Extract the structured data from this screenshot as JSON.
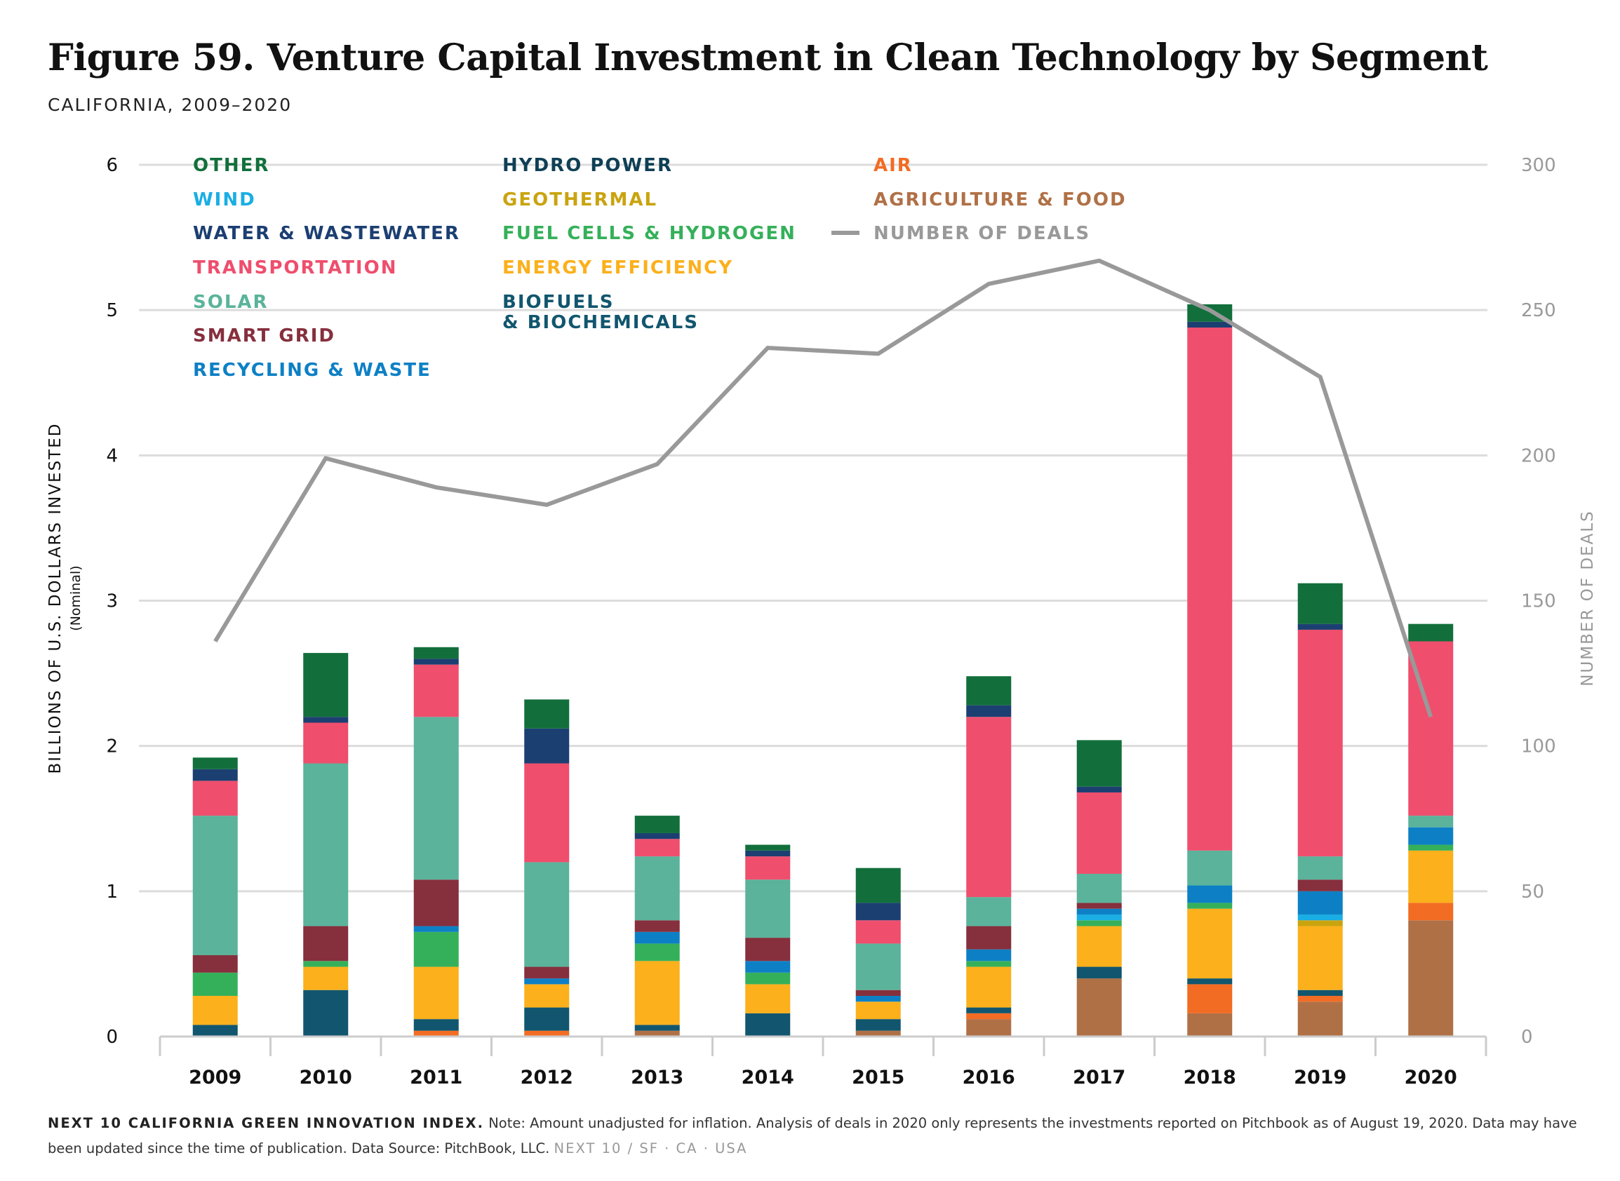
{
  "title": "Figure 59. Venture Capital Investment in Clean Technology by Segment",
  "subtitle": "CALIFORNIA, 2009–2020",
  "footnote": {
    "source_label": "NEXT 10 CALIFORNIA GREEN INNOVATION INDEX.",
    "note": "Note: Amount unadjusted for inflation. Analysis of deals in 2020 only represents the investments reported on Pitchbook as of August 19, 2020. Data may have been updated since the time of publication. Data Source: PitchBook, LLC.",
    "brand": "NEXT 10 / SF · CA · USA"
  },
  "chart_data": {
    "type": "bar",
    "stacked": true,
    "categories": [
      "2009",
      "2010",
      "2011",
      "2012",
      "2013",
      "2014",
      "2015",
      "2016",
      "2017",
      "2018",
      "2019",
      "2020"
    ],
    "ylabel": "BILLIONS OF U.S. DOLLARS INVESTED",
    "ylabel_sub": "(Nominal)",
    "y2label": "NUMBER OF DEALS",
    "ylim": [
      0,
      6
    ],
    "y2lim": [
      0,
      300
    ],
    "yticks": [
      "0",
      "1",
      "2",
      "3",
      "4",
      "5",
      "6"
    ],
    "y2ticks": [
      "0",
      "50",
      "100",
      "150",
      "200",
      "250",
      "300"
    ],
    "grid": true,
    "legend_position": "top-left",
    "series": [
      {
        "name": "AGRICULTURE & FOOD",
        "color": "#b07046",
        "values": [
          0,
          0,
          0,
          0,
          0.04,
          0,
          0.04,
          0.12,
          0.4,
          0.16,
          0.24,
          0.8
        ]
      },
      {
        "name": "AIR",
        "color": "#f26c23",
        "values": [
          0,
          0,
          0.04,
          0.04,
          0,
          0,
          0,
          0.04,
          0,
          0.2,
          0.04,
          0.12
        ]
      },
      {
        "name": "BIOFUELS & BIOCHEMICALS",
        "color": "#11566e",
        "values": [
          0.08,
          0.32,
          0.08,
          0.16,
          0.04,
          0.16,
          0.08,
          0.04,
          0.08,
          0.04,
          0.04,
          0
        ]
      },
      {
        "name": "ENERGY EFFICIENCY",
        "color": "#fbb01c",
        "values": [
          0.2,
          0.16,
          0.36,
          0.16,
          0.44,
          0.2,
          0.12,
          0.28,
          0.28,
          0.48,
          0.44,
          0.36
        ]
      },
      {
        "name": "GEOTHERMAL",
        "color": "#c9a40f",
        "values": [
          0,
          0,
          0,
          0,
          0,
          0,
          0,
          0,
          0,
          0,
          0.04,
          0
        ]
      },
      {
        "name": "FUEL CELLS & HYDROGEN",
        "color": "#35b05a",
        "values": [
          0.16,
          0.04,
          0.24,
          0,
          0.12,
          0.08,
          0,
          0.04,
          0.04,
          0.04,
          0,
          0.04
        ]
      },
      {
        "name": "WIND",
        "color": "#1aaee4",
        "values": [
          0,
          0,
          0,
          0,
          0,
          0,
          0,
          0,
          0.04,
          0,
          0.04,
          0
        ]
      },
      {
        "name": "RECYCLING & WASTE",
        "color": "#0d80c5",
        "values": [
          0,
          0,
          0.04,
          0.04,
          0.08,
          0.08,
          0.04,
          0.08,
          0.04,
          0.12,
          0.16,
          0.12
        ]
      },
      {
        "name": "SMART GRID",
        "color": "#862f3d",
        "values": [
          0.12,
          0.24,
          0.32,
          0.08,
          0.08,
          0.16,
          0.04,
          0.16,
          0.04,
          0,
          0.08,
          0
        ]
      },
      {
        "name": "SOLAR",
        "color": "#5ab39a",
        "values": [
          0.96,
          1.12,
          1.12,
          0.72,
          0.44,
          0.4,
          0.32,
          0.2,
          0.2,
          0.24,
          0.16,
          0.08
        ]
      },
      {
        "name": "TRANSPORTATION",
        "color": "#ef4e6d",
        "values": [
          0.24,
          0.28,
          0.36,
          0.68,
          0.12,
          0.16,
          0.16,
          1.24,
          0.56,
          3.6,
          1.56,
          1.2
        ]
      },
      {
        "name": "HYDRO POWER",
        "color": "#0f3f55",
        "values": [
          0,
          0,
          0,
          0,
          0,
          0,
          0,
          0,
          0,
          0,
          0,
          0
        ]
      },
      {
        "name": "WATER & WASTEWATER",
        "color": "#1c3f72",
        "values": [
          0.08,
          0.04,
          0.04,
          0.24,
          0.04,
          0.04,
          0.12,
          0.08,
          0.04,
          0.04,
          0.04,
          0
        ]
      },
      {
        "name": "OTHER",
        "color": "#126f3b",
        "values": [
          0.08,
          0.44,
          0.08,
          0.2,
          0.12,
          0.04,
          0.24,
          0.2,
          0.32,
          0.12,
          0.28,
          0.12
        ]
      }
    ],
    "line_series": {
      "name": "NUMBER OF DEALS",
      "color": "#999999",
      "axis": "right",
      "values": [
        136,
        199,
        189,
        183,
        197,
        237,
        235,
        259,
        267,
        250,
        227,
        110
      ]
    }
  }
}
